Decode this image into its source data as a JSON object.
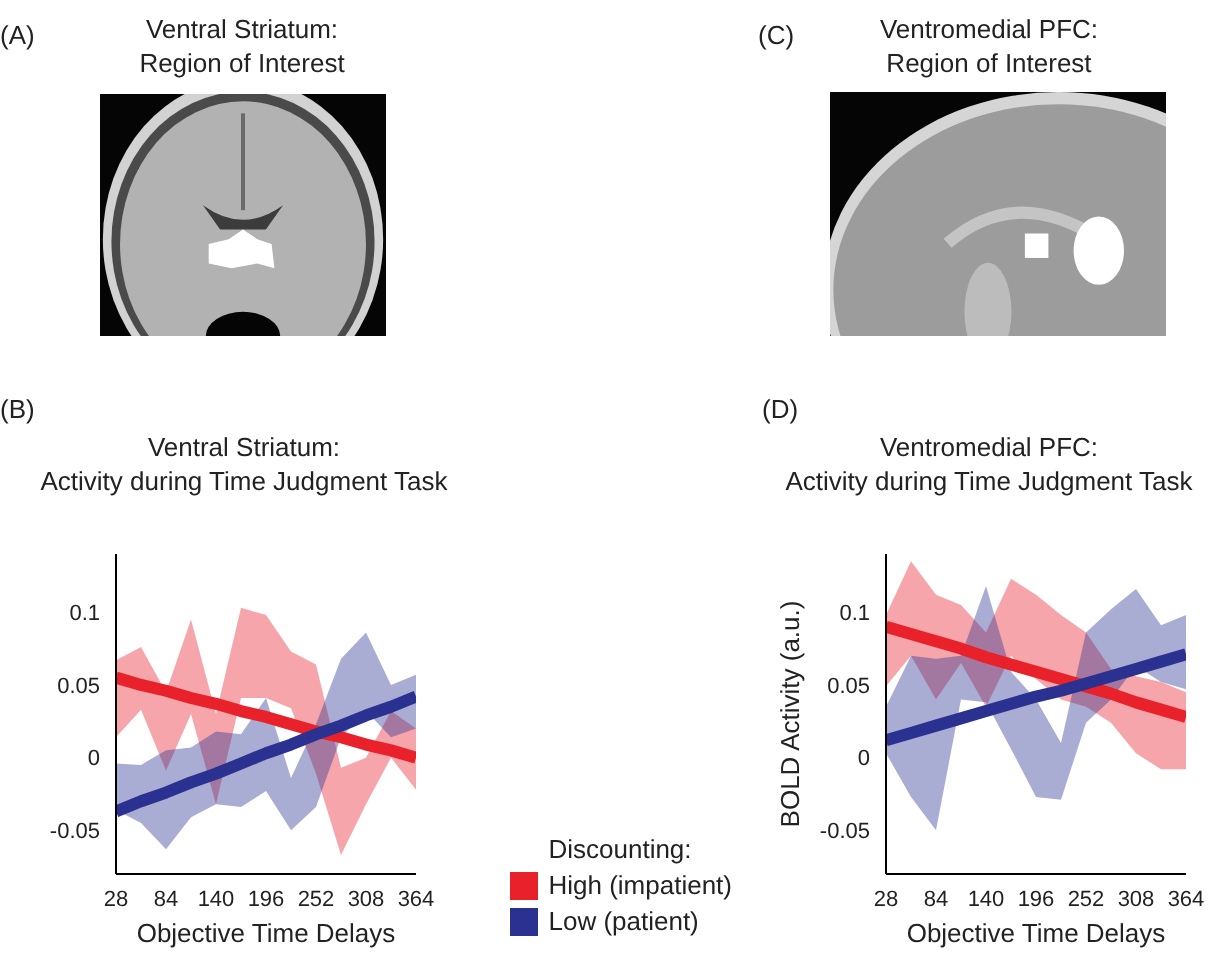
{
  "chart_data": [
    {
      "type": "other",
      "title": "Ventral Striatum:\nRegion of Interest",
      "annotations": [
        "(A)"
      ]
    },
    {
      "type": "other",
      "title": "Ventromedial PFC:\nRegion of Interest",
      "annotations": [
        "(C)"
      ]
    },
    {
      "type": "line",
      "title": "Ventral Striatum:\nActivity during Time Judgment Task",
      "xlabel": "Objective Time Delays",
      "annotations": [
        "(B)"
      ],
      "legend": "bottom right",
      "legend_title": "Discounting:",
      "x": [
        28,
        56,
        84,
        112,
        140,
        168,
        196,
        224,
        252,
        280,
        308,
        336,
        364
      ],
      "series": [
        {
          "name": "High (impatient)",
          "color": "#e8212b",
          "values": [
            0.055,
            0.05,
            0.046,
            0.041,
            0.037,
            0.032,
            0.028,
            0.023,
            0.018,
            0.014,
            0.009,
            0.005,
            0.0
          ],
          "lower": [
            0.014,
            0.033,
            -0.009,
            0.03,
            -0.032,
            0.041,
            0.041,
            0.034,
            -0.011,
            -0.067,
            -0.032,
            0.0,
            -0.022
          ],
          "upper": [
            0.067,
            0.076,
            0.045,
            0.095,
            0.03,
            0.103,
            0.098,
            0.073,
            0.064,
            -0.007,
            0.0,
            0.032,
            0.02
          ]
        },
        {
          "name": "Low (patient)",
          "color": "#2b3190",
          "values": [
            -0.037,
            -0.03,
            -0.024,
            -0.017,
            -0.011,
            -0.004,
            0.003,
            0.009,
            0.016,
            0.022,
            0.029,
            0.035,
            0.042
          ],
          "lower": [
            -0.036,
            -0.045,
            -0.063,
            -0.041,
            -0.032,
            -0.034,
            -0.023,
            -0.05,
            -0.034,
            0.014,
            0.032,
            0.014,
            0.02
          ],
          "upper": [
            -0.004,
            -0.005,
            0.005,
            0.007,
            0.018,
            0.016,
            0.041,
            -0.014,
            0.023,
            0.068,
            0.086,
            0.05,
            0.057
          ]
        }
      ],
      "xlim": [
        28,
        364
      ],
      "xticks": [
        28,
        84,
        140,
        196,
        252,
        308,
        364
      ],
      "ylim": [
        -0.08,
        0.14
      ],
      "yticks": [
        -0.05,
        0,
        0.05,
        0.1
      ]
    },
    {
      "type": "line",
      "title": "Ventromedial PFC:\nActivity during Time Judgment Task",
      "xlabel": "Objective Time Delays",
      "ylabel": "BOLD Activity (a.u.)",
      "annotations": [
        "(D)"
      ],
      "x": [
        28,
        56,
        84,
        112,
        140,
        168,
        196,
        224,
        252,
        280,
        308,
        336,
        364
      ],
      "series": [
        {
          "color": "#e8212b",
          "values": [
            0.09,
            0.085,
            0.08,
            0.075,
            0.069,
            0.064,
            0.059,
            0.054,
            0.049,
            0.044,
            0.038,
            0.033,
            0.028
          ],
          "lower": [
            0.049,
            0.07,
            0.04,
            0.065,
            0.035,
            0.07,
            0.054,
            0.04,
            0.035,
            0.024,
            0.003,
            -0.008,
            -0.008
          ],
          "upper": [
            0.098,
            0.135,
            0.112,
            0.105,
            0.086,
            0.123,
            0.112,
            0.098,
            0.086,
            0.061,
            0.056,
            0.052,
            0.045
          ]
        },
        {
          "color": "#2b3190",
          "values": [
            0.012,
            0.017,
            0.022,
            0.027,
            0.032,
            0.037,
            0.042,
            0.046,
            0.051,
            0.056,
            0.061,
            0.066,
            0.071
          ],
          "lower": [
            0.003,
            -0.027,
            -0.05,
            0.04,
            0.038,
            0.006,
            -0.027,
            -0.029,
            0.024,
            0.04,
            0.063,
            0.052,
            0.047
          ],
          "upper": [
            0.035,
            0.07,
            0.068,
            0.07,
            0.118,
            0.059,
            0.04,
            0.01,
            0.086,
            0.102,
            0.116,
            0.091,
            0.098
          ]
        }
      ],
      "xlim": [
        28,
        364
      ],
      "xticks": [
        28,
        84,
        140,
        196,
        252,
        308,
        364
      ],
      "ylim": [
        -0.08,
        0.14
      ],
      "yticks": [
        -0.05,
        0,
        0.05,
        0.1
      ]
    }
  ]
}
